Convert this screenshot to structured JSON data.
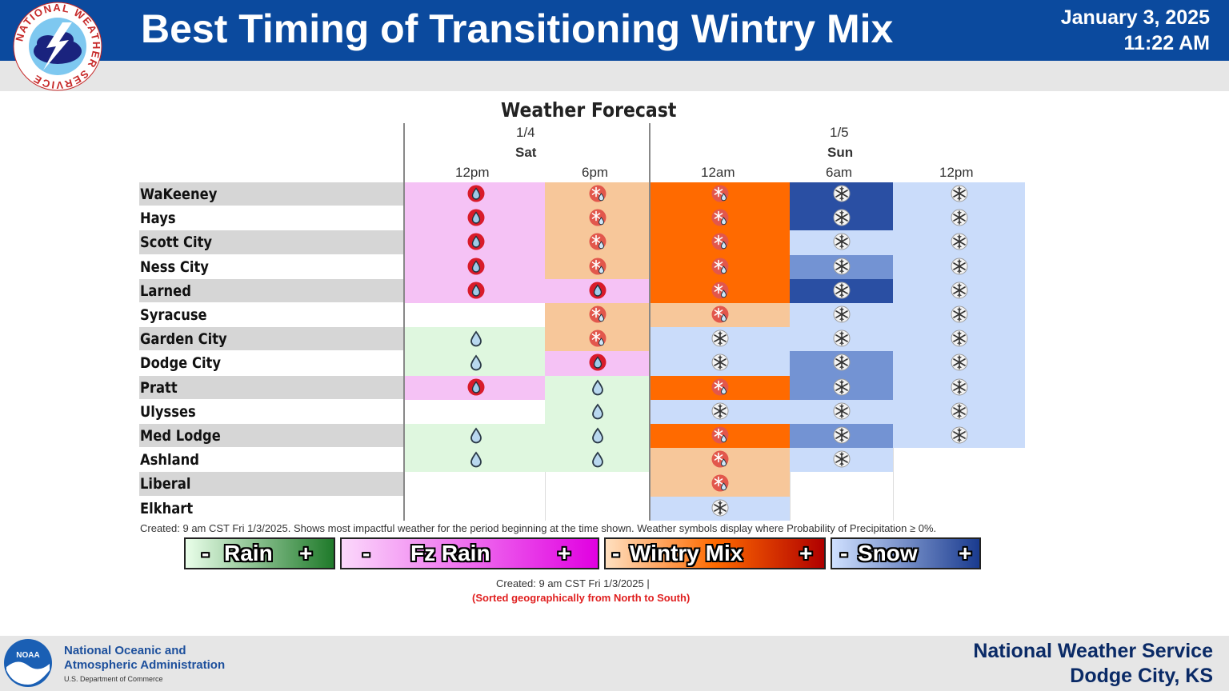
{
  "header": {
    "title": "Best Timing of Transitioning Wintry Mix",
    "date": "January 3, 2025",
    "time": "11:22 AM",
    "logo_ring_text": "NATIONAL WEATHER SERVICE"
  },
  "chart": {
    "title": "Weather Forecast",
    "day1": {
      "date": "1/4",
      "dow": "Sat"
    },
    "day2": {
      "date": "1/5",
      "dow": "Sun"
    },
    "periods": [
      "12pm",
      "6pm",
      "12am",
      "6am",
      "12pm"
    ],
    "cities": [
      "WaKeeney",
      "Hays",
      "Scott City",
      "Ness City",
      "Larned",
      "Syracuse",
      "Garden City",
      "Dodge City",
      "Pratt",
      "Ulysses",
      "Med Lodge",
      "Ashland",
      "Liberal",
      "Elkhart"
    ],
    "note": "Created: 9 am CST Fri 1/3/2025. Shows most impactful weather for the period beginning at the time shown. Weather symbols display where Probability of Precipitation ≥ 0%."
  },
  "chart_data": {
    "type": "table",
    "title": "Weather Forecast",
    "columns": [
      "Sat 1/4 12pm",
      "Sat 1/4 6pm",
      "Sun 1/5 12am",
      "Sun 1/5 6am",
      "Sun 1/5 12pm"
    ],
    "rows": [
      {
        "city": "WaKeeney",
        "cells": [
          "fzrain-1",
          "mix-1",
          "mix-2",
          "snow-3",
          "snow-1"
        ]
      },
      {
        "city": "Hays",
        "cells": [
          "fzrain-1",
          "mix-1",
          "mix-2",
          "snow-3",
          "snow-1"
        ]
      },
      {
        "city": "Scott City",
        "cells": [
          "fzrain-1",
          "mix-1",
          "mix-2",
          "snow-1",
          "snow-1"
        ]
      },
      {
        "city": "Ness City",
        "cells": [
          "fzrain-1",
          "mix-1",
          "mix-2",
          "snow-2",
          "snow-1"
        ]
      },
      {
        "city": "Larned",
        "cells": [
          "fzrain-1",
          "fzrain-1",
          "mix-2",
          "snow-3",
          "snow-1"
        ]
      },
      {
        "city": "Syracuse",
        "cells": [
          "none",
          "mix-1",
          "mix-1",
          "snow-1",
          "snow-1"
        ]
      },
      {
        "city": "Garden City",
        "cells": [
          "rain-1",
          "mix-1",
          "snow-1",
          "snow-1",
          "snow-1"
        ]
      },
      {
        "city": "Dodge City",
        "cells": [
          "rain-1",
          "fzrain-1",
          "snow-1",
          "snow-2",
          "snow-1"
        ]
      },
      {
        "city": "Pratt",
        "cells": [
          "fzrain-1",
          "rain-1",
          "mix-2",
          "snow-2",
          "snow-1"
        ]
      },
      {
        "city": "Ulysses",
        "cells": [
          "none",
          "rain-1",
          "snow-1",
          "snow-1",
          "snow-1"
        ]
      },
      {
        "city": "Med Lodge",
        "cells": [
          "rain-1",
          "rain-1",
          "mix-2",
          "snow-2",
          "snow-1"
        ]
      },
      {
        "city": "Ashland",
        "cells": [
          "rain-1",
          "rain-1",
          "mix-1",
          "snow-1",
          "none"
        ]
      },
      {
        "city": "Liberal",
        "cells": [
          "none",
          "none",
          "mix-1",
          "none",
          "none"
        ]
      },
      {
        "city": "Elkhart",
        "cells": [
          "none",
          "none",
          "snow-1",
          "none",
          "none"
        ]
      }
    ],
    "legend": [
      "Rain",
      "Fz Rain",
      "Wintry Mix",
      "Snow"
    ]
  },
  "colors": {
    "header_blue": "#0b4a9e",
    "rain-1": "#dff7df",
    "fzrain-1": "#f5c2f5",
    "mix-1": "#f7c79a",
    "mix-2": "#ff6a00",
    "snow-1": "#cadcfa",
    "snow-2": "#7393d3",
    "snow-3": "#2a4fa3"
  },
  "legend": {
    "rain": {
      "minus": "-",
      "label": "Rain",
      "plus": "+"
    },
    "fzrain": {
      "minus": "-",
      "label": "Fz Rain",
      "plus": "+"
    },
    "mix": {
      "minus": "-",
      "label": "Wintry Mix",
      "plus": "+"
    },
    "snow": {
      "minus": "-",
      "label": "Snow",
      "plus": "+"
    }
  },
  "created": "Created: 9 am CST Fri 1/3/2025  |",
  "sorted_note": "(Sorted geographically from North to South)",
  "footer": {
    "noaa_line1": "National Oceanic and",
    "noaa_line2": "Atmospheric Administration",
    "noaa_line3": "U.S. Department of Commerce",
    "noaa_logo_text": "NOAA",
    "office_line1": "National Weather Service",
    "office_line2": "Dodge City, KS"
  }
}
